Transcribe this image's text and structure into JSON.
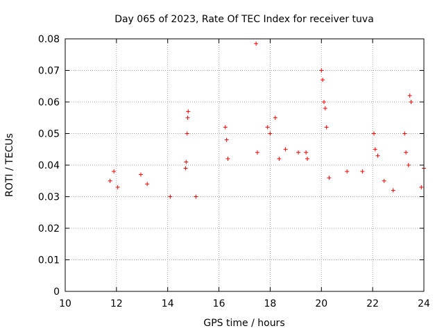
{
  "chart_data": {
    "type": "scatter",
    "title": "Day 065 of 2023, Rate Of TEC Index for receiver tuva",
    "xlabel": "GPS time / hours",
    "ylabel": "ROTI / TECUs",
    "xlim": [
      10,
      24
    ],
    "ylim": [
      0,
      0.08
    ],
    "x_ticks": [
      "10",
      "12",
      "14",
      "16",
      "18",
      "20",
      "22",
      "24"
    ],
    "y_ticks": [
      "0",
      "0.01",
      "0.02",
      "0.03",
      "0.04",
      "0.05",
      "0.06",
      "0.07",
      "0.08"
    ],
    "grid": true,
    "legend": "none",
    "marker": "+",
    "color": "#ff0000",
    "series": [
      {
        "x": [
          11.75,
          11.9,
          12.05,
          12.95,
          13.2,
          14.1,
          14.8,
          14.78,
          14.76,
          14.72,
          14.7,
          15.1,
          16.25,
          16.3,
          16.35,
          17.45,
          17.5,
          17.9,
          18.0,
          18.2,
          18.35,
          18.6,
          19.1,
          19.4,
          19.45,
          20.0,
          20.05,
          20.1,
          20.15,
          20.2,
          20.3,
          21.0,
          21.6,
          22.05,
          22.1,
          22.2,
          22.45,
          22.8,
          23.25,
          23.3,
          23.4,
          23.45,
          23.5,
          23.9,
          24.0
        ],
        "y": [
          0.035,
          0.038,
          0.033,
          0.037,
          0.034,
          0.03,
          0.057,
          0.055,
          0.05,
          0.041,
          0.039,
          0.03,
          0.052,
          0.048,
          0.042,
          0.0785,
          0.044,
          0.052,
          0.05,
          0.055,
          0.042,
          0.045,
          0.044,
          0.044,
          0.042,
          0.07,
          0.067,
          0.06,
          0.058,
          0.052,
          0.036,
          0.038,
          0.038,
          0.05,
          0.045,
          0.043,
          0.035,
          0.032,
          0.05,
          0.044,
          0.04,
          0.062,
          0.06,
          0.033,
          0.039
        ]
      }
    ]
  }
}
